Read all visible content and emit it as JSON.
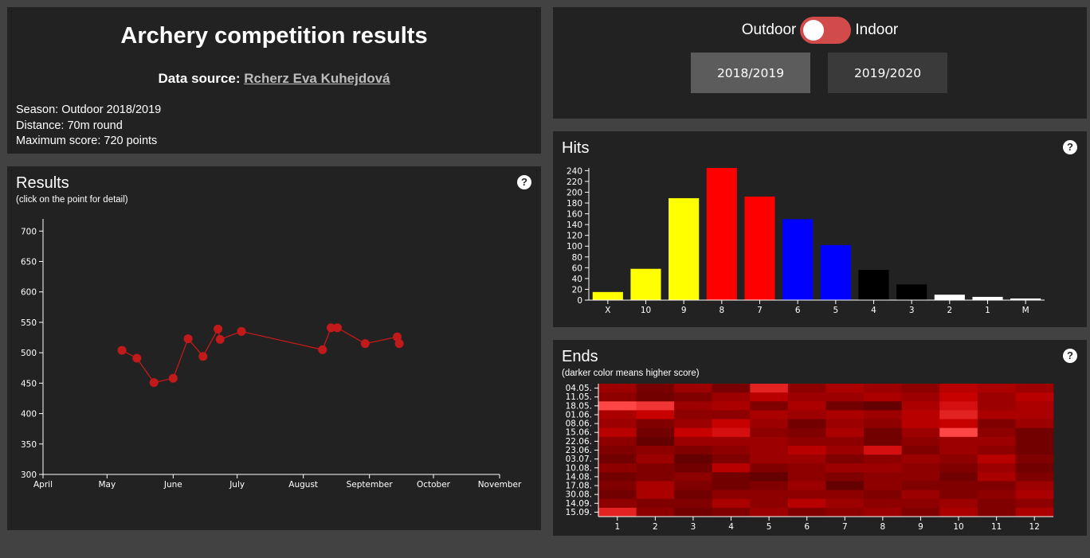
{
  "header": {
    "title": "Archery competition results",
    "source_label": "Data source:",
    "source_link": "Rcherz Eva Kuhejdová",
    "season": "Season: Outdoor 2018/2019",
    "distance": "Distance:  70m round",
    "max_score": "Maximum score: 720 points"
  },
  "controls": {
    "left_label": "Outdoor",
    "right_label": "Indoor",
    "seasons": [
      "2018/2019",
      "2019/2020"
    ]
  },
  "panels": {
    "results_title": "Results",
    "results_subtitle": "(click on the point for detail)",
    "hits_title": "Hits",
    "ends_title": "Ends",
    "ends_subtitle": "(darker color means higher score)",
    "help_glyph": "?"
  },
  "chart_data": [
    {
      "type": "line",
      "x_ticks": [
        "April",
        "May",
        "June",
        "July",
        "August",
        "September",
        "October",
        "November"
      ],
      "ylim": [
        300,
        720
      ],
      "y_ticks": [
        300,
        350,
        400,
        450,
        500,
        550,
        600,
        650,
        700
      ],
      "points": [
        {
          "x": "2019-05-08",
          "y": 504
        },
        {
          "x": "2019-05-15",
          "y": 491
        },
        {
          "x": "2019-05-23",
          "y": 451
        },
        {
          "x": "2019-06-01",
          "y": 458
        },
        {
          "x": "2019-06-08",
          "y": 523
        },
        {
          "x": "2019-06-15",
          "y": 494
        },
        {
          "x": "2019-06-22",
          "y": 539
        },
        {
          "x": "2019-06-23",
          "y": 522
        },
        {
          "x": "2019-07-03",
          "y": 535
        },
        {
          "x": "2019-08-10",
          "y": 505
        },
        {
          "x": "2019-08-14",
          "y": 541
        },
        {
          "x": "2019-08-17",
          "y": 541
        },
        {
          "x": "2019-08-30",
          "y": 515
        },
        {
          "x": "2019-09-14",
          "y": 526
        },
        {
          "x": "2019-09-15",
          "y": 515
        }
      ]
    },
    {
      "type": "bar",
      "categories": [
        "X",
        "10",
        "9",
        "8",
        "7",
        "6",
        "5",
        "4",
        "3",
        "2",
        "1",
        "M"
      ],
      "values": [
        15,
        58,
        189,
        245,
        192,
        150,
        102,
        56,
        29,
        10,
        6,
        3
      ],
      "colors": [
        "#ffff00",
        "#ffff00",
        "#ffff00",
        "#ff0000",
        "#ff0000",
        "#0000ff",
        "#0000ff",
        "#000000",
        "#000000",
        "#ffffff",
        "#ffffff",
        "#ffffff"
      ],
      "ylim": [
        0,
        245
      ],
      "y_ticks": [
        0,
        20,
        40,
        60,
        80,
        100,
        120,
        140,
        160,
        180,
        200,
        220,
        240
      ]
    },
    {
      "type": "heatmap",
      "columns": [
        "1",
        "2",
        "3",
        "4",
        "5",
        "6",
        "7",
        "8",
        "9",
        "10",
        "11",
        "12"
      ],
      "rows": [
        "04.05.",
        "11.05.",
        "18.05.",
        "01.06.",
        "08.06.",
        "15.06.",
        "22.06.",
        "23.06.",
        "03.07.",
        "10.08.",
        "14.08.",
        "17.08.",
        "30.08.",
        "14.09.",
        "15.09."
      ],
      "values": [
        [
          50,
          55,
          50,
          55,
          40,
          52,
          48,
          50,
          52,
          46,
          48,
          50
        ],
        [
          52,
          56,
          54,
          50,
          46,
          50,
          50,
          48,
          50,
          44,
          50,
          46
        ],
        [
          36,
          38,
          50,
          48,
          54,
          48,
          56,
          58,
          48,
          42,
          50,
          48
        ],
        [
          48,
          44,
          52,
          52,
          48,
          50,
          48,
          50,
          46,
          40,
          48,
          48
        ],
        [
          50,
          54,
          50,
          44,
          50,
          56,
          50,
          52,
          46,
          44,
          54,
          50
        ],
        [
          46,
          56,
          44,
          42,
          52,
          54,
          48,
          56,
          50,
          36,
          52,
          56
        ],
        [
          52,
          58,
          50,
          50,
          50,
          52,
          52,
          56,
          52,
          50,
          50,
          56
        ],
        [
          54,
          52,
          54,
          52,
          50,
          46,
          50,
          42,
          54,
          50,
          52,
          56
        ],
        [
          56,
          50,
          58,
          54,
          50,
          50,
          54,
          52,
          50,
          52,
          46,
          54
        ],
        [
          52,
          54,
          56,
          46,
          54,
          52,
          50,
          50,
          52,
          54,
          50,
          56
        ],
        [
          56,
          54,
          52,
          56,
          58,
          52,
          54,
          52,
          52,
          56,
          48,
          54
        ],
        [
          54,
          48,
          54,
          56,
          54,
          50,
          58,
          52,
          54,
          54,
          54,
          50
        ],
        [
          56,
          48,
          56,
          52,
          52,
          52,
          52,
          54,
          50,
          54,
          52,
          48
        ],
        [
          52,
          54,
          54,
          48,
          52,
          46,
          50,
          52,
          52,
          50,
          54,
          52
        ],
        [
          40,
          52,
          56,
          54,
          50,
          54,
          52,
          50,
          54,
          48,
          54,
          48
        ]
      ]
    }
  ]
}
